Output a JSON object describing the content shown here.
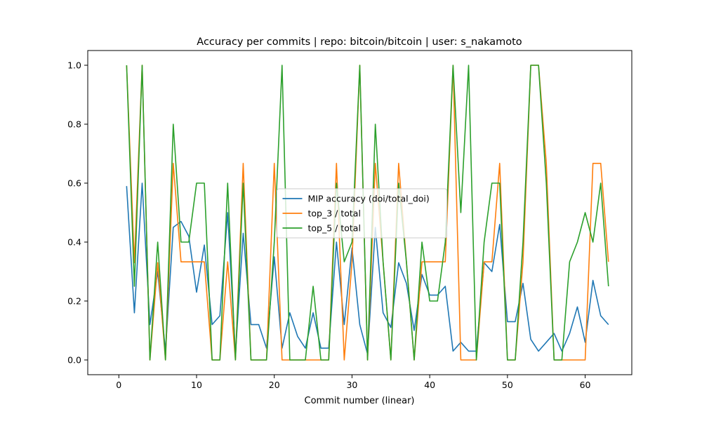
{
  "chart_data": {
    "type": "line",
    "title": "Accuracy per commits | repo: bitcoin/bitcoin | user: s_nakamoto",
    "xlabel": "Commit number (linear)",
    "ylabel": "",
    "xlim": [
      -4,
      66
    ],
    "ylim": [
      -0.05,
      1.05
    ],
    "x_ticks": [
      0,
      10,
      20,
      30,
      40,
      50,
      60
    ],
    "y_ticks": [
      0.0,
      0.2,
      0.4,
      0.6,
      0.8,
      1.0
    ],
    "y_tick_labels": [
      "0.0",
      "0.2",
      "0.4",
      "0.6",
      "0.8",
      "1.0"
    ],
    "grid": false,
    "legend_position": "center",
    "x": [
      1,
      2,
      3,
      4,
      5,
      6,
      7,
      8,
      9,
      10,
      11,
      12,
      13,
      14,
      15,
      16,
      17,
      18,
      19,
      20,
      21,
      22,
      23,
      24,
      25,
      26,
      27,
      28,
      29,
      30,
      31,
      32,
      33,
      34,
      35,
      36,
      37,
      38,
      39,
      40,
      41,
      42,
      43,
      44,
      45,
      46,
      47,
      48,
      49,
      50,
      51,
      52,
      53,
      54,
      55,
      56,
      57,
      58,
      59,
      60,
      61,
      62,
      63
    ],
    "series": [
      {
        "name": "MIP accuracy (doi/total_doi)",
        "color": "#1f77b4",
        "values": [
          0.59,
          0.16,
          0.6,
          0.12,
          0.3,
          0.03,
          0.45,
          0.47,
          0.42,
          0.23,
          0.39,
          0.12,
          0.15,
          0.5,
          0.02,
          0.43,
          0.12,
          0.12,
          0.04,
          0.35,
          0.04,
          0.16,
          0.08,
          0.04,
          0.16,
          0.04,
          0.04,
          0.4,
          0.12,
          0.38,
          0.12,
          0.02,
          0.45,
          0.16,
          0.11,
          0.33,
          0.26,
          0.1,
          0.29,
          0.22,
          0.22,
          0.25,
          0.03,
          0.06,
          0.03,
          0.03,
          0.33,
          0.3,
          0.46,
          0.13,
          0.13,
          0.26,
          0.07,
          0.03,
          0.06,
          0.09,
          0.03,
          0.09,
          0.18,
          0.06,
          0.27,
          0.15,
          0.12
        ]
      },
      {
        "name": "top_3 / total",
        "color": "#ff7f0e",
        "values": [
          1.0,
          0.33,
          1.0,
          0.0,
          0.33,
          0.0,
          0.667,
          0.333,
          0.333,
          0.333,
          0.333,
          0.0,
          0.0,
          0.333,
          0.0,
          0.667,
          0.0,
          0.0,
          0.0,
          0.667,
          0.0,
          0.0,
          0.0,
          0.0,
          0.0,
          0.0,
          0.0,
          0.667,
          0.0,
          0.333,
          1.0,
          0.0,
          0.667,
          0.333,
          0.0,
          0.667,
          0.333,
          0.0,
          0.333,
          0.333,
          0.333,
          0.333,
          1.0,
          0.0,
          0.0,
          0.0,
          0.333,
          0.333,
          0.667,
          0.0,
          0.0,
          0.333,
          1.0,
          1.0,
          0.667,
          0.0,
          0.0,
          0.0,
          0.0,
          0.0,
          0.667,
          0.667,
          0.333
        ]
      },
      {
        "name": "top_5 / total",
        "color": "#2ca02c",
        "values": [
          1.0,
          0.25,
          1.0,
          0.0,
          0.4,
          0.0,
          0.8,
          0.4,
          0.4,
          0.6,
          0.6,
          0.0,
          0.0,
          0.6,
          0.0,
          0.6,
          0.0,
          0.0,
          0.0,
          0.4,
          1.0,
          0.0,
          0.0,
          0.0,
          0.25,
          0.0,
          0.0,
          0.6,
          0.333,
          0.4,
          1.0,
          0.0,
          0.8,
          0.333,
          0.0,
          0.6,
          0.333,
          0.0,
          0.4,
          0.2,
          0.2,
          0.4,
          1.0,
          0.5,
          1.0,
          0.0,
          0.4,
          0.6,
          0.6,
          0.0,
          0.0,
          0.4,
          1.0,
          1.0,
          0.6,
          0.0,
          0.0,
          0.333,
          0.4,
          0.5,
          0.4,
          0.6,
          0.25
        ]
      }
    ]
  }
}
